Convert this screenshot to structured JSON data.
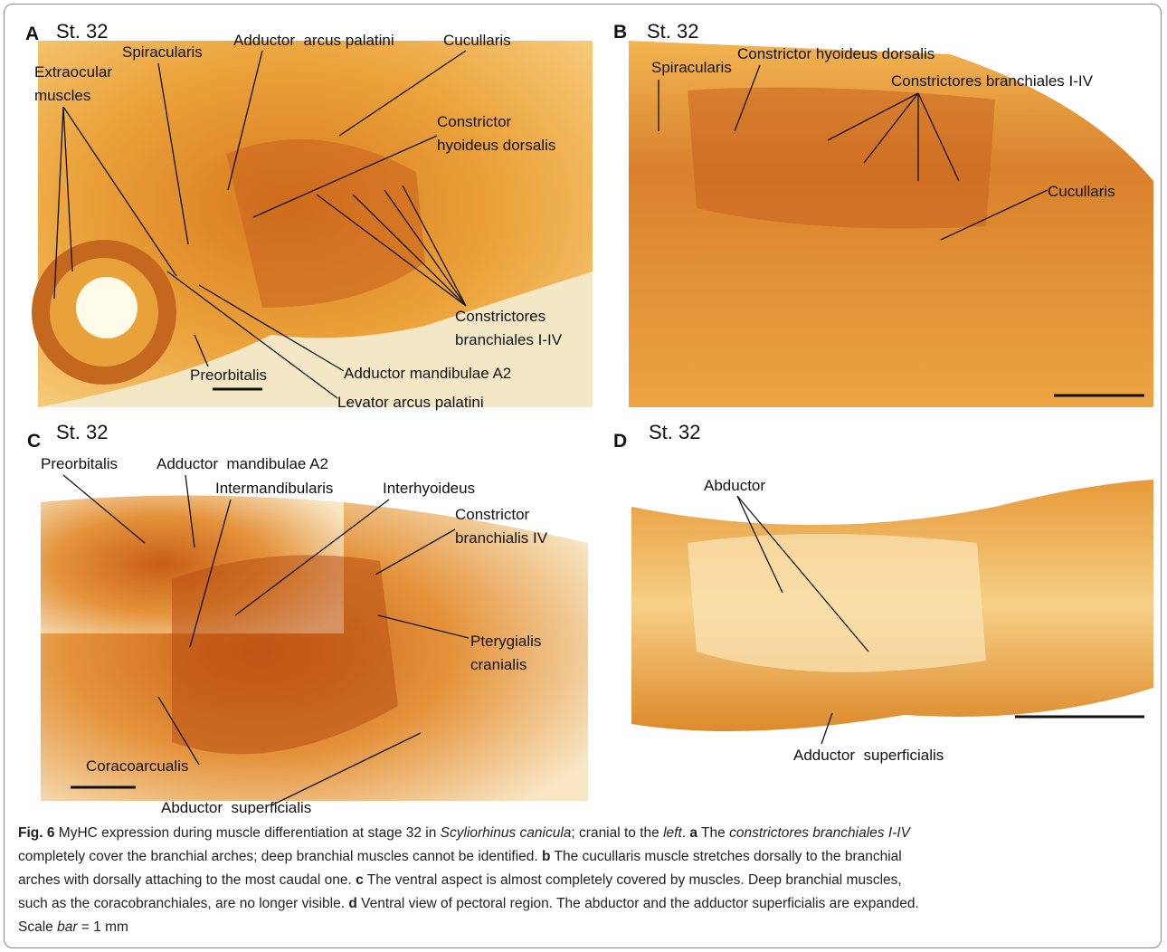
{
  "panels": [
    {
      "letter": "A",
      "stage": "St. 32",
      "labels": [
        [
          "Extraocular",
          "muscles"
        ],
        [
          "Spiracularis"
        ],
        [
          "Adductor  arcus palatini"
        ],
        [
          "Cucullaris"
        ],
        [
          "Constrictor",
          "hyoideus dorsalis"
        ],
        [
          "Constrictores",
          "branchiales I-IV"
        ],
        [
          "Adductor mandibulae A2"
        ],
        [
          "Levator arcus palatini"
        ],
        [
          "Preorbitalis"
        ]
      ]
    },
    {
      "letter": "B",
      "stage": "St. 32",
      "labels": [
        [
          "Spiracularis"
        ],
        [
          "Constrictor hyoideus dorsalis"
        ],
        [
          "Constrictores branchiales I-IV"
        ],
        [
          "Cucullaris"
        ]
      ]
    },
    {
      "letter": "C",
      "stage": "St. 32",
      "labels": [
        [
          "Preorbitalis"
        ],
        [
          "Adductor  mandibulae A2"
        ],
        [
          "Intermandibularis"
        ],
        [
          "Interhyoideus"
        ],
        [
          "Constrictor",
          "branchialis IV"
        ],
        [
          "Pterygialis",
          "cranialis"
        ],
        [
          "Coracoarcualis"
        ],
        [
          "Abductor  superficialis"
        ]
      ]
    },
    {
      "letter": "D",
      "stage": "St. 32",
      "labels": [
        [
          "Abductor"
        ],
        [
          "Adductor  superficialis"
        ]
      ]
    }
  ],
  "caption": {
    "lines": [
      [
        {
          "text": "Fig. 6",
          "style": "bold"
        },
        {
          "text": " MyHC expression during muscle differentiation at stage 32 in ",
          "style": "normal"
        },
        {
          "text": "Scyliorhinus canicula",
          "style": "italic"
        },
        {
          "text": "; cranial to the ",
          "style": "normal"
        },
        {
          "text": "left",
          "style": "italic"
        },
        {
          "text": ". ",
          "style": "normal"
        },
        {
          "text": "a",
          "style": "bold"
        },
        {
          "text": " The ",
          "style": "normal"
        },
        {
          "text": "constrictores branchiales I-IV",
          "style": "italic"
        }
      ],
      [
        {
          "text": "completely cover the branchial arches; deep branchial muscles cannot be identified. ",
          "style": "normal"
        },
        {
          "text": "b",
          "style": "bold"
        },
        {
          "text": " The cucullaris muscle stretches dorsally to the branchial",
          "style": "normal"
        }
      ],
      [
        {
          "text": "arches with dorsally attaching to the most caudal one. ",
          "style": "normal"
        },
        {
          "text": "c",
          "style": "bold"
        },
        {
          "text": " The ventral aspect is almost completely covered by muscles. Deep branchial muscles,",
          "style": "normal"
        }
      ],
      [
        {
          "text": "such as the coracobranchiales, are no longer visible. ",
          "style": "normal"
        },
        {
          "text": "d",
          "style": "bold"
        },
        {
          "text": " Ventral view of pectoral region. The abductor and the adductor superficialis are expanded.",
          "style": "normal"
        }
      ],
      [
        {
          "text": "Scale ",
          "style": "normal"
        },
        {
          "text": "bar",
          "style": "italic"
        },
        {
          "text": " = 1 mm",
          "style": "normal"
        }
      ]
    ]
  }
}
